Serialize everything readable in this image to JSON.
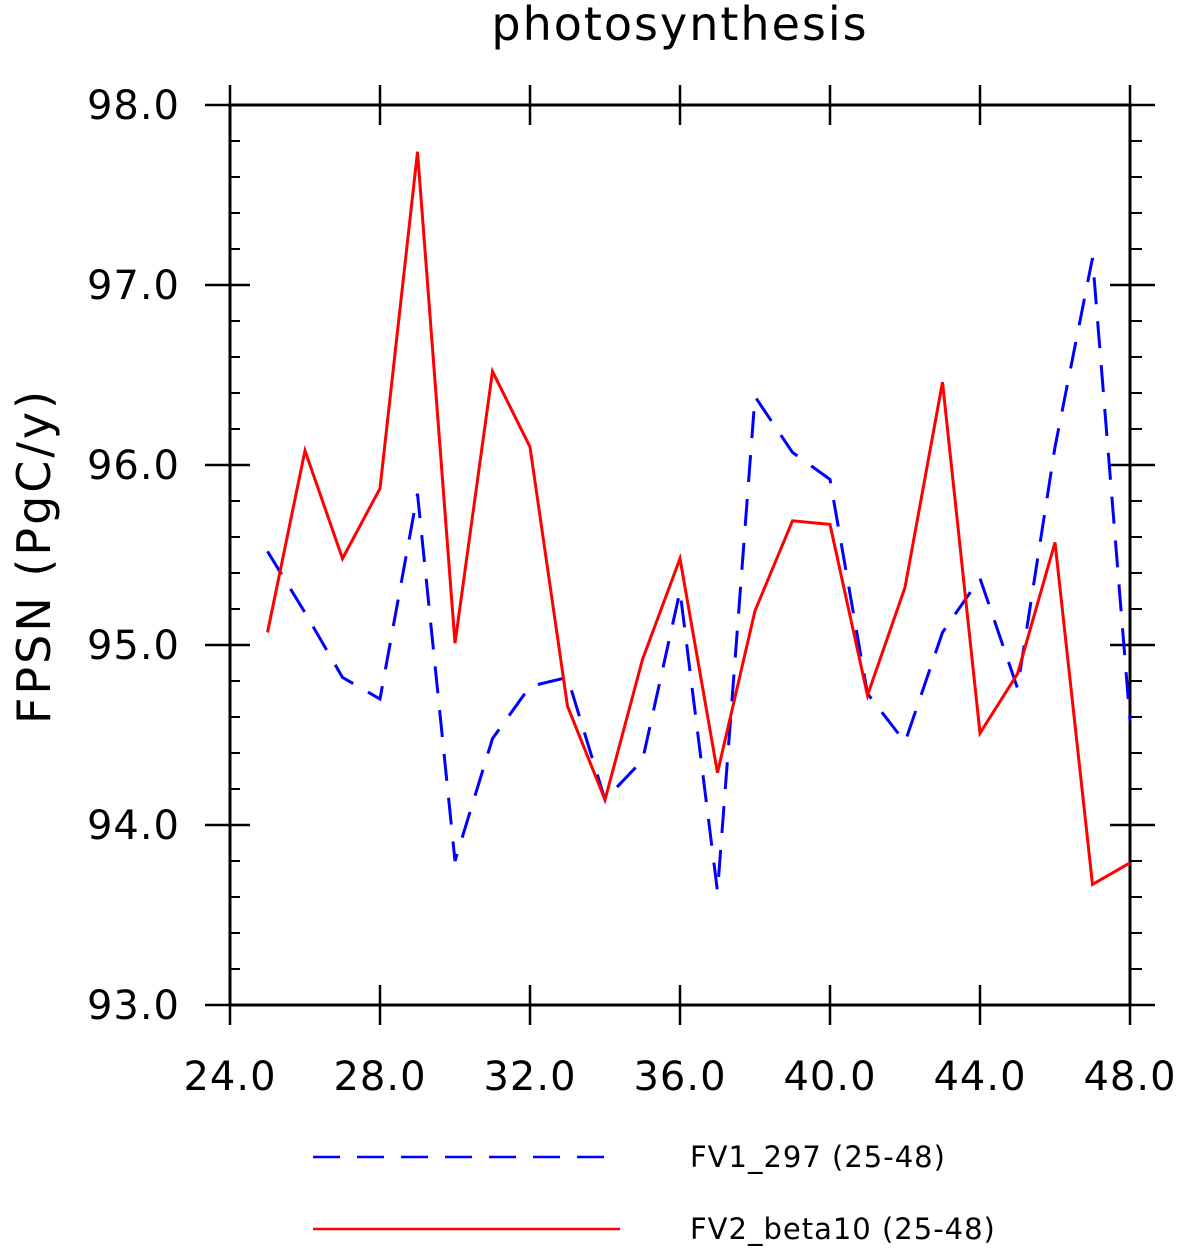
{
  "chart_data": {
    "type": "line",
    "title": "photosynthesis",
    "xlabel": "",
    "ylabel": "FPSN  (PgC/y)",
    "xlim": [
      24.0,
      48.0
    ],
    "ylim": [
      93.0,
      98.0
    ],
    "x_ticks": [
      "24.0",
      "28.0",
      "32.0",
      "36.0",
      "40.0",
      "44.0",
      "48.0"
    ],
    "y_ticks": [
      "93.0",
      "94.0",
      "95.0",
      "96.0",
      "97.0",
      "98.0"
    ],
    "grid": false,
    "legend_position": "bottom",
    "x": [
      25,
      26,
      27,
      28,
      29,
      30,
      31,
      32,
      33,
      34,
      35,
      36,
      37,
      38,
      39,
      40,
      41,
      42,
      43,
      44,
      45,
      46,
      47,
      48
    ],
    "series": [
      {
        "name": "FV1_297 (25-48)",
        "color": "#0000ff",
        "line_style": "dashed",
        "values": [
          95.52,
          95.18,
          94.82,
          94.7,
          95.84,
          93.8,
          94.48,
          94.77,
          94.82,
          94.14,
          94.36,
          95.3,
          93.63,
          96.38,
          96.07,
          95.92,
          94.73,
          94.46,
          95.07,
          95.37,
          94.76,
          96.1,
          97.15,
          94.58
        ]
      },
      {
        "name": "FV2_beta10 (25-48)",
        "color": "#ff0000",
        "line_style": "solid",
        "values": [
          95.07,
          96.08,
          95.48,
          95.87,
          97.74,
          95.01,
          96.52,
          96.1,
          94.66,
          94.14,
          94.92,
          95.48,
          94.29,
          95.19,
          95.69,
          95.67,
          94.72,
          95.32,
          96.46,
          94.51,
          94.84,
          95.57,
          93.67,
          93.79
        ]
      }
    ]
  }
}
